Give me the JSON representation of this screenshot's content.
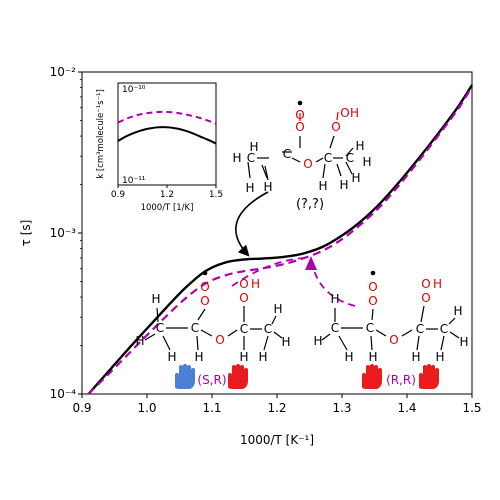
{
  "chart_data": {
    "type": "line",
    "xlabel": "1000/T [K⁻¹]",
    "ylabel": "τ [s]",
    "xlim": [
      0.9,
      1.5
    ],
    "ylim": [
      0.0001,
      0.01
    ],
    "yscale": "log",
    "x_ticks": [
      "0.9",
      "1.0",
      "1.1",
      "1.2",
      "1.3",
      "1.4",
      "1.5"
    ],
    "y_ticks": [
      "10⁻⁴",
      "10⁻³",
      "10⁻²"
    ],
    "grid": false,
    "series": [
      {
        "color": "#000000",
        "style": "solid",
        "x": [
          0.91,
          0.94,
          0.97,
          1.0,
          1.03,
          1.06,
          1.09,
          1.12,
          1.15,
          1.18,
          1.21,
          1.24,
          1.27,
          1.3,
          1.33,
          1.36,
          1.39,
          1.42,
          1.45,
          1.48,
          1.5
        ],
        "y": [
          0.0001,
          0.000137,
          0.000188,
          0.000255,
          0.000345,
          0.00046,
          0.00058,
          0.000655,
          0.000685,
          0.000695,
          0.00071,
          0.000745,
          0.00082,
          0.000965,
          0.00119,
          0.00155,
          0.00212,
          0.00298,
          0.00425,
          0.0062,
          0.0083
        ]
      },
      {
        "color": "#b000b0",
        "style": "dashed",
        "x": [
          0.91,
          0.94,
          0.97,
          1.0,
          1.03,
          1.06,
          1.09,
          1.12,
          1.15,
          1.18,
          1.21,
          1.24,
          1.27,
          1.3,
          1.33,
          1.36,
          1.39,
          1.42,
          1.45,
          1.48,
          1.5
        ],
        "y": [
          0.0001,
          0.000132,
          0.000175,
          0.000232,
          0.000305,
          0.000395,
          0.000485,
          0.000545,
          0.00058,
          0.000605,
          0.00064,
          0.000695,
          0.000775,
          0.000915,
          0.00114,
          0.00148,
          0.00203,
          0.00287,
          0.00412,
          0.006,
          0.0081
        ]
      }
    ],
    "inset": {
      "xlabel": "1000/T [1/K]",
      "ylabel": "k [cm³molecule⁻¹s⁻¹]",
      "xlim": [
        0.9,
        1.5
      ],
      "ylim": [
        1e-11,
        1e-10
      ],
      "yscale": "log",
      "x_ticks": [
        "0.9",
        "1.2",
        "1.5"
      ],
      "y_ticks": [
        "10⁻¹¹",
        "10⁻¹⁰"
      ],
      "series": [
        {
          "color": "#000000",
          "style": "solid",
          "x": [
            0.9,
            0.95,
            1.0,
            1.05,
            1.1,
            1.15,
            1.2,
            1.25,
            1.3,
            1.35,
            1.4,
            1.45,
            1.5
          ],
          "y": [
            2.7e-11,
            3e-11,
            3.25e-11,
            3.45e-11,
            3.6e-11,
            3.68e-11,
            3.68e-11,
            3.6e-11,
            3.45e-11,
            3.25e-11,
            3e-11,
            2.78e-11,
            2.55e-11
          ]
        },
        {
          "color": "#b000b0",
          "style": "dashed",
          "x": [
            0.9,
            0.95,
            1.0,
            1.05,
            1.1,
            1.15,
            1.2,
            1.25,
            1.3,
            1.35,
            1.4,
            1.45,
            1.5
          ],
          "y": [
            4.1e-11,
            4.45e-11,
            4.75e-11,
            4.98e-11,
            5.12e-11,
            5.2e-11,
            5.2e-11,
            5.12e-11,
            4.98e-11,
            4.78e-11,
            4.55e-11,
            4.28e-11,
            3.98e-11
          ]
        }
      ]
    }
  },
  "annotations": {
    "unknown_stereo": "(?,?)",
    "sr_label": "(S,R)",
    "rr_label": "(R,R)"
  },
  "atoms": {
    "h": "H",
    "c": "C",
    "o": "O",
    "oh_o": "O",
    "oh_h": "H"
  },
  "colors": {
    "solid_series": "#000000",
    "dashed_series": "#b000b0",
    "oxygen": "#e00000",
    "left_hand": "#4a7fd4",
    "right_hand": "#e81c1c"
  },
  "icons": [
    "blue-hand-icon",
    "red-hand-icon"
  ]
}
